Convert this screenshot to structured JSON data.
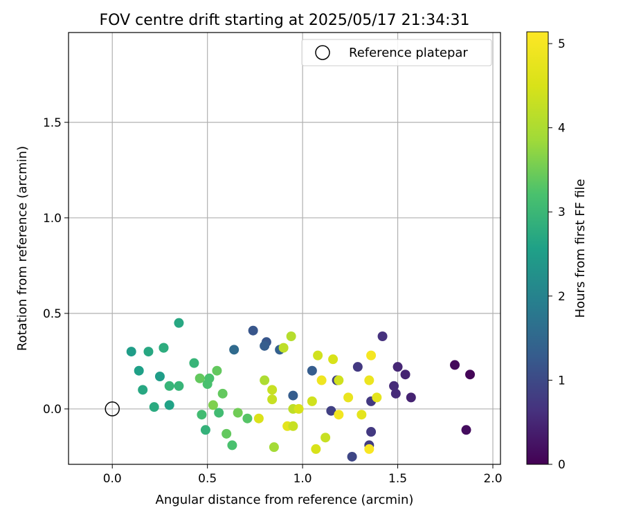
{
  "chart_data": {
    "type": "scatter",
    "title": "FOV centre drift starting at 2025/05/17 21:34:31",
    "xlabel": "Angular distance from reference (arcmin)",
    "ylabel": "Rotation from reference (arcmin)",
    "xlim": [
      -0.23,
      2.04
    ],
    "ylim": [
      -0.29,
      1.97
    ],
    "xticks": [
      "0.0",
      "0.5",
      "1.0",
      "1.5",
      "2.0"
    ],
    "yticks": [
      "0.0",
      "0.5",
      "1.0",
      "1.5"
    ],
    "grid": true,
    "legend": {
      "position": "top-right",
      "entries": [
        "Reference platepar"
      ]
    },
    "reference_point": {
      "x": 0.0,
      "y": 0.0,
      "marker": "open-circle"
    },
    "colorbar": {
      "label": "Hours from first FF file",
      "colormap": "viridis",
      "range": [
        0,
        5.14
      ],
      "ticks": [
        "0",
        "1",
        "2",
        "3",
        "4",
        "5"
      ]
    },
    "points": [
      {
        "x": 1.88,
        "y": 0.18,
        "c": 0.05
      },
      {
        "x": 1.8,
        "y": 0.23,
        "c": 0.1
      },
      {
        "x": 1.86,
        "y": -0.11,
        "c": 0.15
      },
      {
        "x": 1.57,
        "y": 0.06,
        "c": 0.45
      },
      {
        "x": 1.54,
        "y": 0.18,
        "c": 0.45
      },
      {
        "x": 1.5,
        "y": 0.22,
        "c": 0.5
      },
      {
        "x": 1.49,
        "y": 0.08,
        "c": 0.55
      },
      {
        "x": 1.48,
        "y": 0.12,
        "c": 0.55
      },
      {
        "x": 1.42,
        "y": 0.38,
        "c": 0.65
      },
      {
        "x": 1.36,
        "y": 0.04,
        "c": 0.75
      },
      {
        "x": 1.36,
        "y": -0.12,
        "c": 0.75
      },
      {
        "x": 1.35,
        "y": -0.19,
        "c": 0.8
      },
      {
        "x": 1.29,
        "y": 0.22,
        "c": 0.75
      },
      {
        "x": 1.26,
        "y": -0.25,
        "c": 0.95
      },
      {
        "x": 1.18,
        "y": 0.15,
        "c": 0.85
      },
      {
        "x": 1.15,
        "y": -0.01,
        "c": 0.85
      },
      {
        "x": 1.05,
        "y": 0.2,
        "c": 1.3
      },
      {
        "x": 0.95,
        "y": 0.07,
        "c": 1.3
      },
      {
        "x": 0.88,
        "y": 0.31,
        "c": 1.35
      },
      {
        "x": 0.81,
        "y": 0.35,
        "c": 1.2
      },
      {
        "x": 0.8,
        "y": 0.33,
        "c": 1.3
      },
      {
        "x": 0.74,
        "y": 0.41,
        "c": 1.2
      },
      {
        "x": 0.64,
        "y": 0.31,
        "c": 1.55
      },
      {
        "x": 0.35,
        "y": 0.45,
        "c": 2.7
      },
      {
        "x": 0.27,
        "y": 0.32,
        "c": 2.75
      },
      {
        "x": 0.27,
        "y": 0.32,
        "c": 2.8
      },
      {
        "x": 0.19,
        "y": 0.3,
        "c": 2.7
      },
      {
        "x": 0.1,
        "y": 0.3,
        "c": 2.5
      },
      {
        "x": 0.14,
        "y": 0.2,
        "c": 2.55
      },
      {
        "x": 0.16,
        "y": 0.1,
        "c": 2.7
      },
      {
        "x": 0.25,
        "y": 0.17,
        "c": 2.5
      },
      {
        "x": 0.22,
        "y": 0.01,
        "c": 2.75
      },
      {
        "x": 0.3,
        "y": 0.12,
        "c": 2.95
      },
      {
        "x": 0.3,
        "y": 0.02,
        "c": 2.6
      },
      {
        "x": 0.35,
        "y": 0.12,
        "c": 2.95
      },
      {
        "x": 0.43,
        "y": 0.24,
        "c": 2.95
      },
      {
        "x": 0.46,
        "y": 0.16,
        "c": 3.4
      },
      {
        "x": 0.47,
        "y": -0.03,
        "c": 3.1
      },
      {
        "x": 0.49,
        "y": -0.11,
        "c": 2.9
      },
      {
        "x": 0.5,
        "y": 0.13,
        "c": 3.2
      },
      {
        "x": 0.51,
        "y": 0.16,
        "c": 3.2
      },
      {
        "x": 0.53,
        "y": 0.02,
        "c": 3.6
      },
      {
        "x": 0.55,
        "y": 0.2,
        "c": 3.4
      },
      {
        "x": 0.56,
        "y": -0.02,
        "c": 3.1
      },
      {
        "x": 0.58,
        "y": 0.08,
        "c": 3.4
      },
      {
        "x": 0.6,
        "y": -0.13,
        "c": 3.4
      },
      {
        "x": 0.63,
        "y": -0.19,
        "c": 3.2
      },
      {
        "x": 0.66,
        "y": -0.02,
        "c": 3.5
      },
      {
        "x": 0.71,
        "y": -0.05,
        "c": 3.3
      },
      {
        "x": 0.77,
        "y": -0.05,
        "c": 4.55
      },
      {
        "x": 0.8,
        "y": 0.15,
        "c": 4.0
      },
      {
        "x": 0.84,
        "y": 0.05,
        "c": 4.3
      },
      {
        "x": 0.84,
        "y": 0.1,
        "c": 4.3
      },
      {
        "x": 0.85,
        "y": -0.2,
        "c": 3.9
      },
      {
        "x": 0.9,
        "y": 0.32,
        "c": 4.2
      },
      {
        "x": 0.92,
        "y": -0.09,
        "c": 4.7
      },
      {
        "x": 0.94,
        "y": 0.38,
        "c": 4.1
      },
      {
        "x": 0.95,
        "y": 0.0,
        "c": 4.2
      },
      {
        "x": 0.95,
        "y": -0.09,
        "c": 4.3
      },
      {
        "x": 0.98,
        "y": 0.0,
        "c": 4.5
      },
      {
        "x": 1.05,
        "y": 0.04,
        "c": 4.4
      },
      {
        "x": 1.07,
        "y": -0.21,
        "c": 4.5
      },
      {
        "x": 1.08,
        "y": 0.28,
        "c": 4.4
      },
      {
        "x": 1.1,
        "y": 0.15,
        "c": 4.9
      },
      {
        "x": 1.12,
        "y": -0.15,
        "c": 4.3
      },
      {
        "x": 1.16,
        "y": 0.26,
        "c": 4.5
      },
      {
        "x": 1.19,
        "y": 0.15,
        "c": 4.4
      },
      {
        "x": 1.19,
        "y": -0.03,
        "c": 4.95
      },
      {
        "x": 1.24,
        "y": 0.06,
        "c": 4.8
      },
      {
        "x": 1.31,
        "y": -0.03,
        "c": 4.7
      },
      {
        "x": 1.35,
        "y": 0.15,
        "c": 4.85
      },
      {
        "x": 1.36,
        "y": 0.28,
        "c": 5.0
      },
      {
        "x": 1.35,
        "y": -0.21,
        "c": 5.05
      },
      {
        "x": 1.39,
        "y": 0.06,
        "c": 4.7
      }
    ]
  }
}
